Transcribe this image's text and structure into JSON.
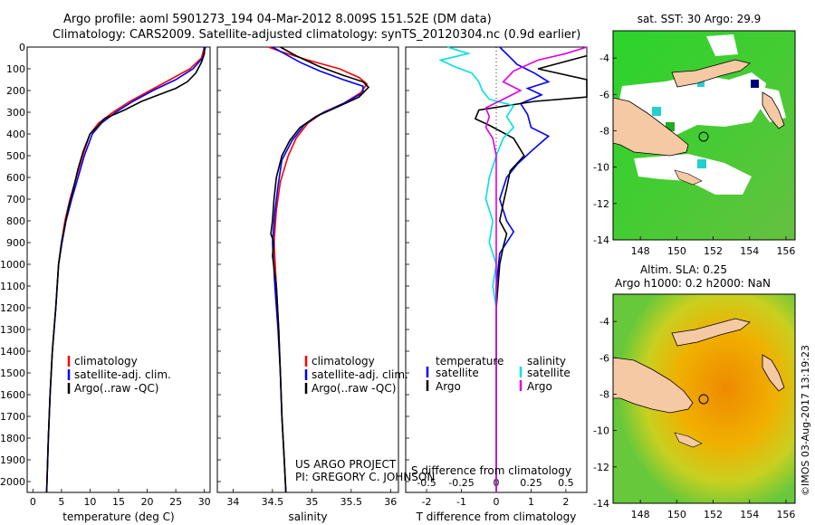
{
  "header": {
    "line1": "Argo profile: aoml 5901273_194 04-Mar-2012 8.009S 151.52E (DM data)",
    "line2": "Climatology: CARS2009. Satellite-adjusted climatology: synTS_20120304.nc (0.9d earlier)"
  },
  "colors": {
    "climatology": "#ff0000",
    "satellite": "#0000ff",
    "argo": "#000000",
    "satellite_salinity": "#00e0e0",
    "argo_salinity": "#e000e0",
    "land": "#f5c9a4",
    "ocean_low": "#22bb22",
    "ocean_high": "#ee8800"
  },
  "chart_data": [
    {
      "type": "line",
      "id": "temperature-profile",
      "xlabel": "temperature (deg C)",
      "xlim": [
        -1,
        31
      ],
      "xticks": [
        0,
        5,
        10,
        15,
        20,
        25,
        30
      ],
      "ylim": [
        0,
        2050
      ],
      "yticks": [
        0,
        100,
        200,
        300,
        400,
        500,
        600,
        700,
        800,
        900,
        1000,
        1100,
        1200,
        1300,
        1400,
        1500,
        1600,
        1700,
        1800,
        1900,
        2000
      ],
      "legend": [
        "climatology",
        "satellite-adj. clim.",
        "Argo(..raw -QC)"
      ],
      "series": [
        {
          "name": "climatology",
          "points": [
            [
              30,
              0
            ],
            [
              29.5,
              50
            ],
            [
              27.5,
              100
            ],
            [
              24,
              150
            ],
            [
              20.5,
              200
            ],
            [
              17,
              250
            ],
            [
              14,
              300
            ],
            [
              11.5,
              350
            ],
            [
              10,
              400
            ],
            [
              8.7,
              500
            ],
            [
              7.6,
              600
            ],
            [
              6.5,
              700
            ],
            [
              5.6,
              800
            ],
            [
              5,
              900
            ],
            [
              4.5,
              1000
            ],
            [
              4,
              1200
            ],
            [
              3.4,
              1400
            ],
            [
              3,
              1600
            ],
            [
              2.7,
              1800
            ],
            [
              2.4,
              2050
            ]
          ]
        },
        {
          "name": "satellite-adj. clim.",
          "points": [
            [
              30.2,
              0
            ],
            [
              29.7,
              50
            ],
            [
              28,
              100
            ],
            [
              25,
              150
            ],
            [
              21,
              200
            ],
            [
              17.5,
              250
            ],
            [
              14.5,
              300
            ],
            [
              12,
              350
            ],
            [
              10.4,
              400
            ],
            [
              9,
              500
            ],
            [
              7.9,
              600
            ],
            [
              6.8,
              700
            ],
            [
              5.8,
              800
            ],
            [
              5.1,
              900
            ],
            [
              4.5,
              1000
            ],
            [
              4,
              1200
            ],
            [
              3.4,
              1400
            ],
            [
              3,
              1600
            ],
            [
              2.7,
              1800
            ],
            [
              2.4,
              2050
            ]
          ]
        },
        {
          "name": "Argo(..raw -QC)",
          "points": [
            [
              30,
              0
            ],
            [
              30,
              30
            ],
            [
              29.5,
              70
            ],
            [
              28.5,
              120
            ],
            [
              27,
              160
            ],
            [
              25,
              190
            ],
            [
              22,
              220
            ],
            [
              19,
              250
            ],
            [
              16,
              290
            ],
            [
              12.5,
              330
            ],
            [
              11.5,
              360
            ],
            [
              10,
              400
            ],
            [
              8.8,
              480
            ],
            [
              7.9,
              560
            ],
            [
              7,
              660
            ],
            [
              6.2,
              740
            ],
            [
              5.6,
              820
            ],
            [
              5,
              900
            ],
            [
              4.5,
              1000
            ],
            [
              4,
              1200
            ],
            [
              3.4,
              1400
            ],
            [
              3,
              1600
            ],
            [
              2.7,
              1800
            ],
            [
              2.4,
              2050
            ]
          ]
        }
      ]
    },
    {
      "type": "line",
      "id": "salinity-profile",
      "xlabel": "salinity",
      "xlim": [
        33.8,
        36.1
      ],
      "xticks": [
        34,
        34.5,
        35,
        35.5,
        36
      ],
      "ylim": [
        0,
        2050
      ],
      "legend": [
        "climatology",
        "satellite-adj. clim.",
        "Argo(..raw -QC)"
      ],
      "annotation": [
        "US ARGO PROJECT",
        "PI: GREGORY C. JOHNSON"
      ],
      "series": [
        {
          "name": "climatology",
          "points": [
            [
              34.45,
              0
            ],
            [
              34.6,
              20
            ],
            [
              34.95,
              60
            ],
            [
              35.35,
              100
            ],
            [
              35.6,
              140
            ],
            [
              35.7,
              170
            ],
            [
              35.62,
              210
            ],
            [
              35.4,
              260
            ],
            [
              35.15,
              300
            ],
            [
              34.95,
              350
            ],
            [
              34.8,
              420
            ],
            [
              34.7,
              500
            ],
            [
              34.6,
              620
            ],
            [
              34.55,
              750
            ],
            [
              34.52,
              900
            ],
            [
              34.55,
              1100
            ],
            [
              34.58,
              1300
            ],
            [
              34.6,
              1500
            ],
            [
              34.62,
              1700
            ],
            [
              34.65,
              1900
            ],
            [
              34.67,
              2050
            ]
          ]
        },
        {
          "name": "satellite-adj. clim.",
          "points": [
            [
              34.5,
              0
            ],
            [
              34.65,
              30
            ],
            [
              34.85,
              70
            ],
            [
              35.1,
              110
            ],
            [
              35.4,
              150
            ],
            [
              35.65,
              180
            ],
            [
              35.65,
              210
            ],
            [
              35.4,
              260
            ],
            [
              35.1,
              310
            ],
            [
              34.9,
              360
            ],
            [
              34.75,
              430
            ],
            [
              34.62,
              520
            ],
            [
              34.57,
              640
            ],
            [
              34.53,
              760
            ],
            [
              34.5,
              900
            ],
            [
              34.53,
              1100
            ],
            [
              34.57,
              1300
            ],
            [
              34.6,
              1500
            ],
            [
              34.62,
              1700
            ],
            [
              34.65,
              1900
            ],
            [
              34.67,
              2050
            ]
          ]
        },
        {
          "name": "Argo(..raw -QC)",
          "points": [
            [
              34.6,
              0
            ],
            [
              34.8,
              40
            ],
            [
              35.1,
              90
            ],
            [
              35.4,
              130
            ],
            [
              35.65,
              160
            ],
            [
              35.72,
              185
            ],
            [
              35.6,
              230
            ],
            [
              35.3,
              280
            ],
            [
              35.05,
              320
            ],
            [
              34.85,
              370
            ],
            [
              34.72,
              430
            ],
            [
              34.62,
              500
            ],
            [
              34.55,
              600
            ],
            [
              34.52,
              700
            ],
            [
              34.5,
              800
            ],
            [
              34.48,
              860
            ],
            [
              34.52,
              900
            ],
            [
              34.5,
              960
            ],
            [
              34.55,
              1100
            ],
            [
              34.58,
              1300
            ],
            [
              34.6,
              1500
            ],
            [
              34.62,
              1700
            ],
            [
              34.65,
              1900
            ],
            [
              34.67,
              2050
            ]
          ]
        }
      ]
    },
    {
      "type": "line",
      "id": "difference-profile",
      "xlabel_bottom": "T difference from climatology",
      "xlabel_top": "S difference from climatology",
      "xlim_T": [
        -2.6,
        2.6
      ],
      "xticks_T": [
        -2,
        -1,
        0,
        1,
        2
      ],
      "xticks_S": [
        -0.5,
        -0.25,
        0,
        0.25,
        0.5
      ],
      "legend_header_T": "temperature",
      "legend_header_S": "salinity",
      "legend": [
        "satellite",
        "Argo",
        "satellite",
        "Argo"
      ],
      "series": [
        {
          "name": "T satellite",
          "points": [
            [
              0.1,
              0
            ],
            [
              0.35,
              40
            ],
            [
              0.6,
              80
            ],
            [
              1.1,
              120
            ],
            [
              1.5,
              160
            ],
            [
              0.9,
              190
            ],
            [
              1.3,
              220
            ],
            [
              0.7,
              260
            ],
            [
              0.9,
              310
            ],
            [
              1.0,
              370
            ],
            [
              1.5,
              410
            ],
            [
              1.0,
              480
            ],
            [
              0.6,
              540
            ],
            [
              0.3,
              600
            ],
            [
              0.1,
              700
            ],
            [
              0.3,
              800
            ],
            [
              0.5,
              850
            ],
            [
              0.3,
              900
            ],
            [
              0.1,
              950
            ],
            [
              0,
              1100
            ],
            [
              0,
              1500
            ],
            [
              0,
              2050
            ]
          ]
        },
        {
          "name": "T Argo",
          "points": [
            [
              2.6,
              40
            ],
            [
              1.2,
              100
            ],
            [
              2.6,
              150
            ],
            [
              2.6,
              230
            ],
            [
              1.1,
              250
            ],
            [
              -0.5,
              290
            ],
            [
              -0.6,
              330
            ],
            [
              -0.2,
              360
            ],
            [
              0.5,
              420
            ],
            [
              0.8,
              500
            ],
            [
              0.4,
              570
            ],
            [
              0.3,
              650
            ],
            [
              0.2,
              720
            ],
            [
              0.1,
              800
            ],
            [
              0.3,
              860
            ],
            [
              0.2,
              920
            ],
            [
              0.1,
              1000
            ],
            [
              0,
              1200
            ],
            [
              0,
              2050
            ]
          ]
        },
        {
          "name": "S satellite",
          "points": [
            [
              -1.4,
              0
            ],
            [
              -0.8,
              30
            ],
            [
              -1.6,
              60
            ],
            [
              -1.2,
              90
            ],
            [
              -0.7,
              120
            ],
            [
              -0.5,
              160
            ],
            [
              -0.4,
              200
            ],
            [
              -0.2,
              240
            ],
            [
              0.5,
              270
            ],
            [
              0.3,
              320
            ],
            [
              0.5,
              370
            ],
            [
              0.2,
              420
            ],
            [
              0,
              500
            ],
            [
              -0.2,
              600
            ],
            [
              -0.3,
              700
            ],
            [
              -0.1,
              800
            ],
            [
              -0.2,
              900
            ],
            [
              0,
              1000
            ],
            [
              -0.1,
              1100
            ],
            [
              0,
              1200
            ],
            [
              0,
              2050
            ]
          ]
        },
        {
          "name": "S Argo",
          "points": [
            [
              2.6,
              0
            ],
            [
              2.0,
              30
            ],
            [
              1.2,
              60
            ],
            [
              0.5,
              110
            ],
            [
              0.2,
              160
            ],
            [
              0.7,
              200
            ],
            [
              0.2,
              240
            ],
            [
              -0.3,
              280
            ],
            [
              -0.2,
              320
            ],
            [
              -0.3,
              370
            ],
            [
              -0.1,
              420
            ],
            [
              0,
              500
            ],
            [
              0,
              2050
            ]
          ]
        }
      ]
    },
    {
      "type": "heatmap",
      "id": "sst-map",
      "title": "sat. SST: 30 Argo: 29.9",
      "xlim": [
        146.5,
        156.5
      ],
      "ylim": [
        -14,
        -2.5
      ],
      "xticks": [
        148,
        150,
        152,
        154,
        156
      ],
      "yticks": [
        -4,
        -6,
        -8,
        -10,
        -12,
        -14
      ],
      "argo_position": [
        151.52,
        -8.009
      ]
    },
    {
      "type": "heatmap",
      "id": "sla-map",
      "title": "Altim. SLA: 0.25",
      "subtitle": "Argo h1000: 0.2 h2000: NaN",
      "xlim": [
        146.5,
        156.5
      ],
      "ylim": [
        -14,
        -2.5
      ],
      "xticks": [
        148,
        150,
        152,
        154,
        156
      ],
      "yticks": [
        -4,
        -6,
        -8,
        -10,
        -12,
        -14
      ],
      "argo_position": [
        151.52,
        -8.009
      ]
    }
  ],
  "footer": {
    "stamp": "©IMOS 03-Aug-2017 13:19:23"
  }
}
